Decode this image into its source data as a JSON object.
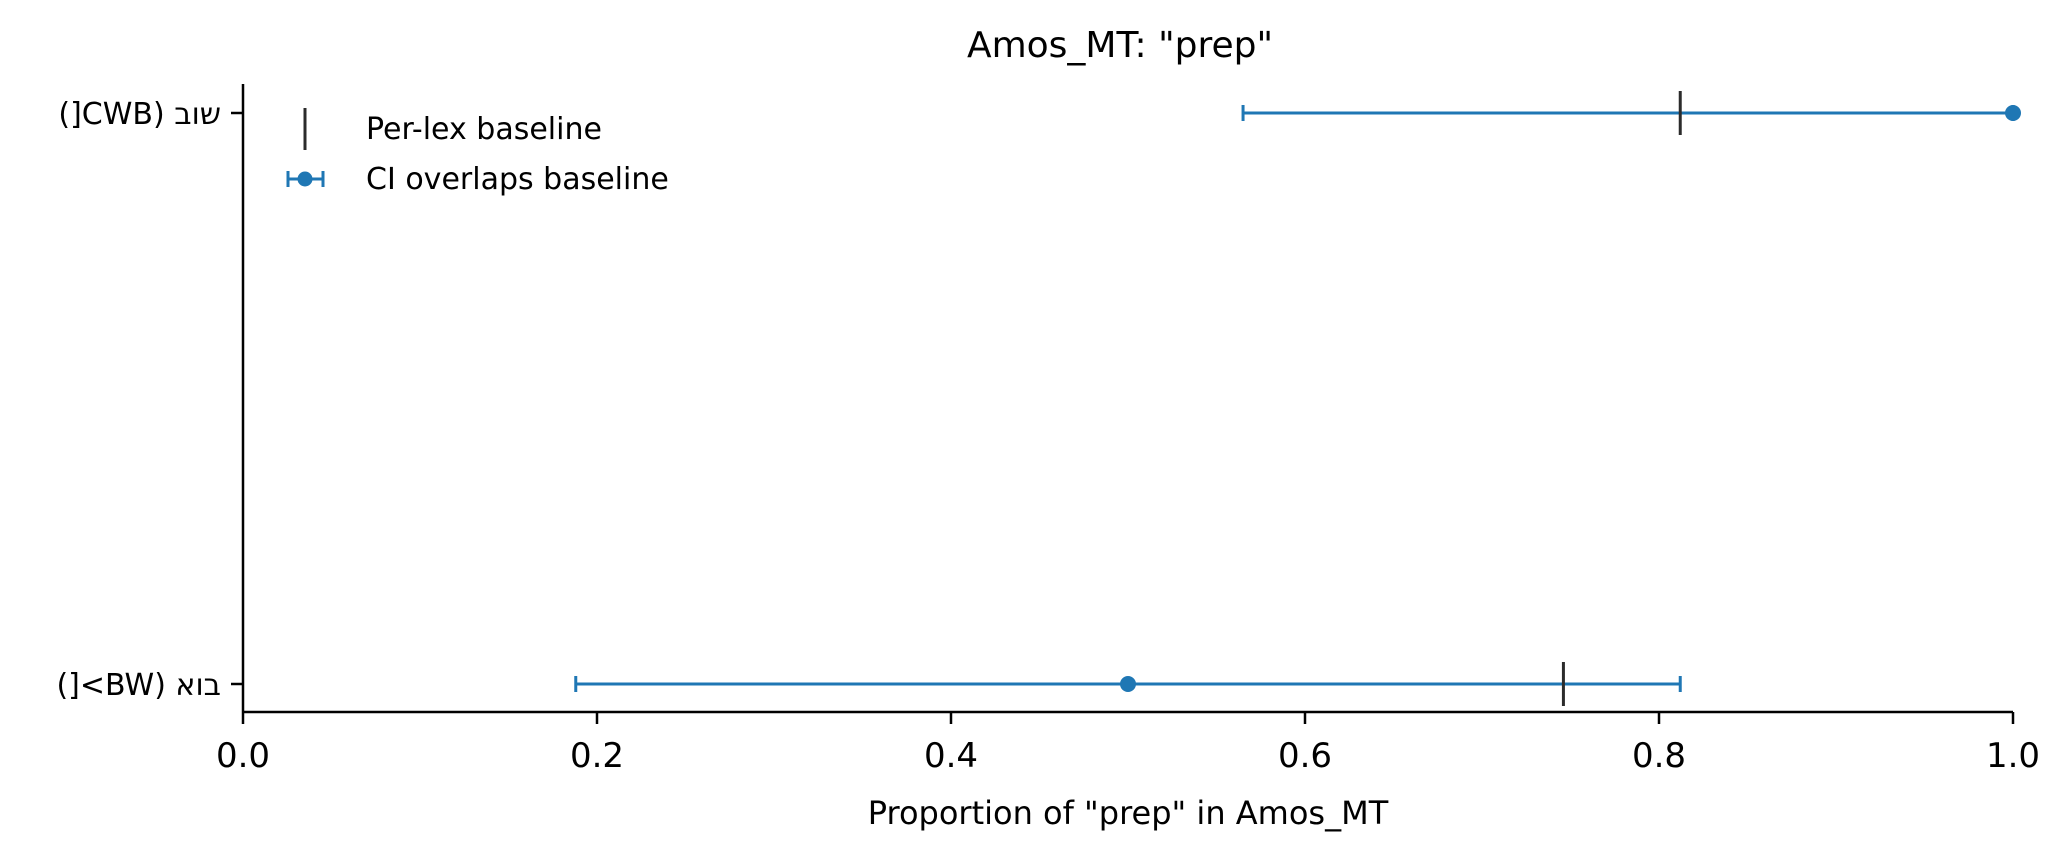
{
  "chart_data": {
    "type": "errorbar",
    "title": "Amos_MT: \"prep\"",
    "xlabel": "Proportion of \"prep\" in Amos_MT",
    "ylabel": "",
    "xlim": [
      0.0,
      1.0
    ],
    "x_ticks": [
      "0.0",
      "0.2",
      "0.4",
      "0.6",
      "0.8",
      "1.0"
    ],
    "grid": false,
    "legend_position": "top-left",
    "categories": [
      "שוב (CWB[)",
      "בוא (BW>[)"
    ],
    "series": [
      {
        "name": "CI overlaps baseline",
        "color": "#1f77b4",
        "points": [
          {
            "category": "שוב (CWB[)",
            "value": 1.0,
            "ci_low": 0.565,
            "ci_high": 1.0
          },
          {
            "category": "בוא (BW>[)",
            "value": 0.5,
            "ci_low": 0.188,
            "ci_high": 0.812
          }
        ]
      }
    ],
    "baselines": {
      "name": "Per-lex baseline",
      "color": "#2b2b2b",
      "values": [
        {
          "category": "שוב (CWB[)",
          "value": 0.812
        },
        {
          "category": "בוא (BW>[)",
          "value": 0.746
        }
      ]
    }
  }
}
